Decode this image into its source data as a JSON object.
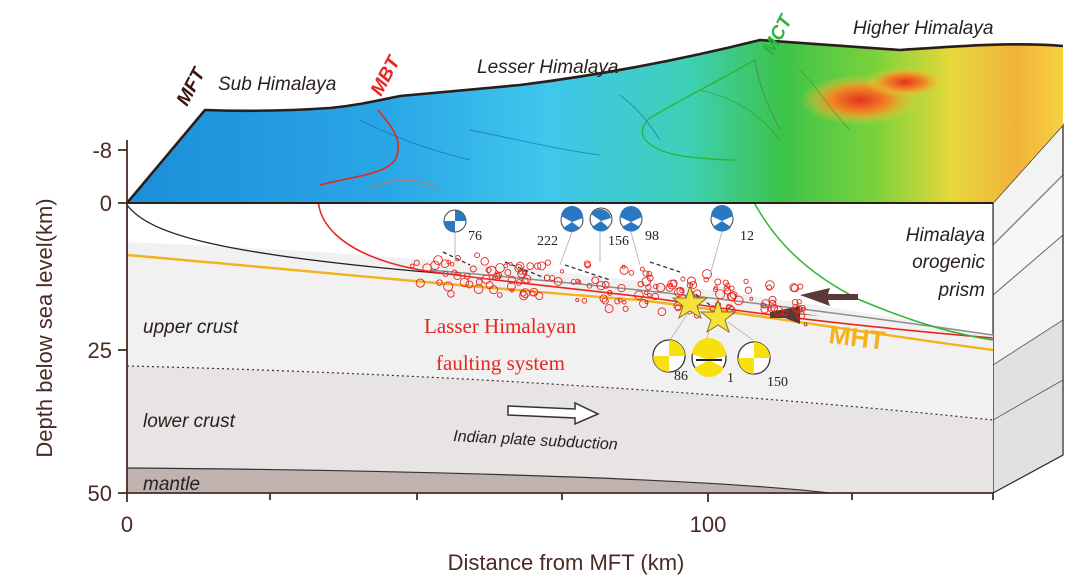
{
  "axes": {
    "y_label": "Depth below sea level(km)",
    "x_label": "Distance from MFT (km)",
    "y_ticks": [
      "-8",
      "0",
      "25",
      "50"
    ],
    "x_ticks": [
      "0",
      "100"
    ]
  },
  "surface_labels": {
    "mft": "MFT",
    "sub_himalaya": "Sub Himalaya",
    "mbt": "MBT",
    "lesser_himalaya": "Lesser Himalaya",
    "mct": "MCT",
    "higher_himalaya": "Higher Himalaya"
  },
  "section_labels": {
    "upper_crust": "upper crust",
    "lower_crust": "lower crust",
    "mantle": "mantle",
    "indian_plate": "Indian plate subduction",
    "orogenic_1": "Himalaya",
    "orogenic_2": "orogenic",
    "orogenic_3": "prism",
    "lasser_1": "Lasser Himalayan",
    "lasser_2": "faulting system",
    "mht": "MHT"
  },
  "mechanism_labels": {
    "m76": "76",
    "m222": "222",
    "m156": "156",
    "m98": "98",
    "m12": "12",
    "m86": "86",
    "m1": "1",
    "m150": "150"
  },
  "colors": {
    "axis": "#4a2a24",
    "mbt_red": "#e8261f",
    "mct_green": "#2fb43a",
    "mht_orange": "#f2b21a",
    "beachball_blue": "#2a78c0",
    "beachball_yellow": "#f6e10f",
    "star": "#f7e23a"
  }
}
